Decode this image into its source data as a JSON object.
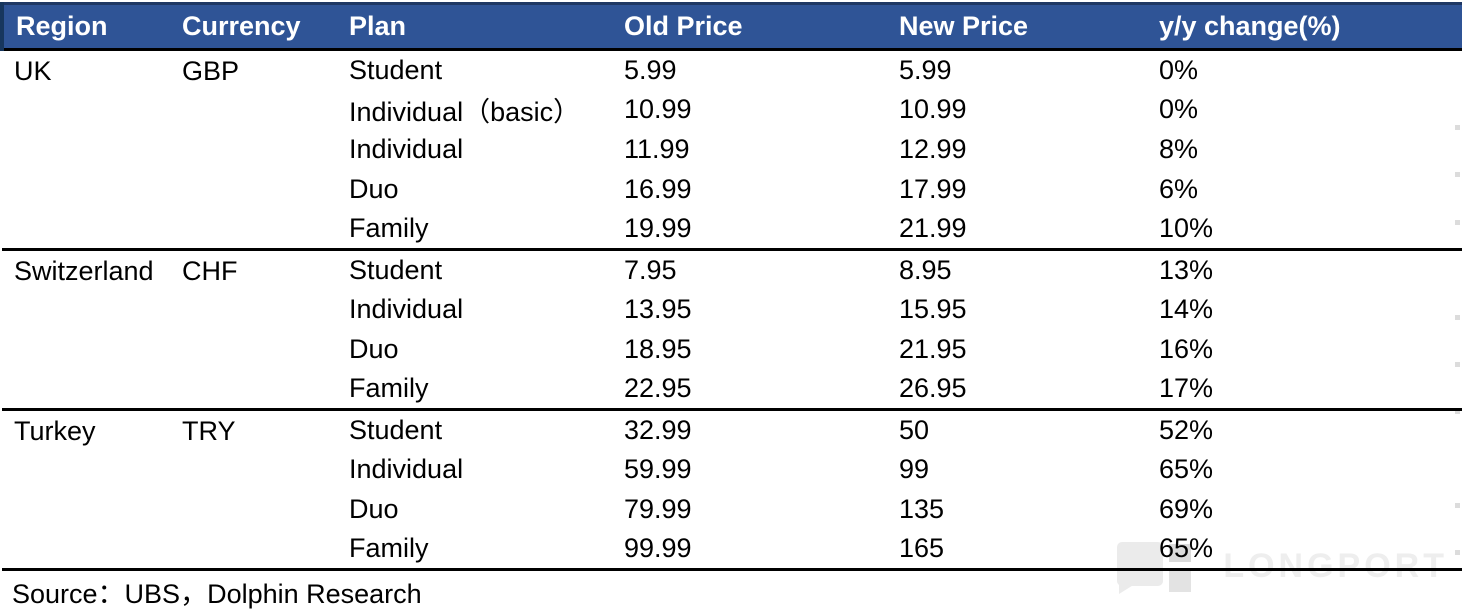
{
  "chart_data": {
    "type": "table",
    "columns": [
      "Region",
      "Currency",
      "Plan",
      "Old Price",
      "New Price",
      "y/y change(%)"
    ],
    "groups": [
      {
        "region": "UK",
        "currency": "GBP",
        "rows": [
          {
            "plan": "Student",
            "old_price": "5.99",
            "new_price": "5.99",
            "yoy_change": "0%"
          },
          {
            "plan": "Individual（basic）",
            "old_price": "10.99",
            "new_price": "10.99",
            "yoy_change": "0%"
          },
          {
            "plan": "Individual",
            "old_price": "11.99",
            "new_price": "12.99",
            "yoy_change": "8%"
          },
          {
            "plan": "Duo",
            "old_price": "16.99",
            "new_price": "17.99",
            "yoy_change": "6%"
          },
          {
            "plan": "Family",
            "old_price": "19.99",
            "new_price": "21.99",
            "yoy_change": "10%"
          }
        ]
      },
      {
        "region": "Switzerland",
        "currency": "CHF",
        "rows": [
          {
            "plan": "Student",
            "old_price": "7.95",
            "new_price": "8.95",
            "yoy_change": "13%"
          },
          {
            "plan": "Individual",
            "old_price": "13.95",
            "new_price": "15.95",
            "yoy_change": "14%"
          },
          {
            "plan": "Duo",
            "old_price": "18.95",
            "new_price": "21.95",
            "yoy_change": "16%"
          },
          {
            "plan": "Family",
            "old_price": "22.95",
            "new_price": "26.95",
            "yoy_change": "17%"
          }
        ]
      },
      {
        "region": "Turkey",
        "currency": "TRY",
        "rows": [
          {
            "plan": "Student",
            "old_price": "32.99",
            "new_price": "50",
            "yoy_change": "52%"
          },
          {
            "plan": "Individual",
            "old_price": "59.99",
            "new_price": "99",
            "yoy_change": "65%"
          },
          {
            "plan": "Duo",
            "old_price": "79.99",
            "new_price": "135",
            "yoy_change": "69%"
          },
          {
            "plan": "Family",
            "old_price": "99.99",
            "new_price": "165",
            "yoy_change": "65%"
          }
        ]
      }
    ]
  },
  "footer": {
    "source": "Source：UBS，Dolphin Research"
  },
  "watermark": {
    "text": "LONGPORT"
  },
  "colors": {
    "header_bg": "#2f5496",
    "header_top_border": "#1f3864",
    "header_text": "#ffffff",
    "rule": "#000000",
    "body_text": "#000000",
    "watermark_text": "#eeeeee",
    "watermark_logo": "#ebebeb"
  }
}
